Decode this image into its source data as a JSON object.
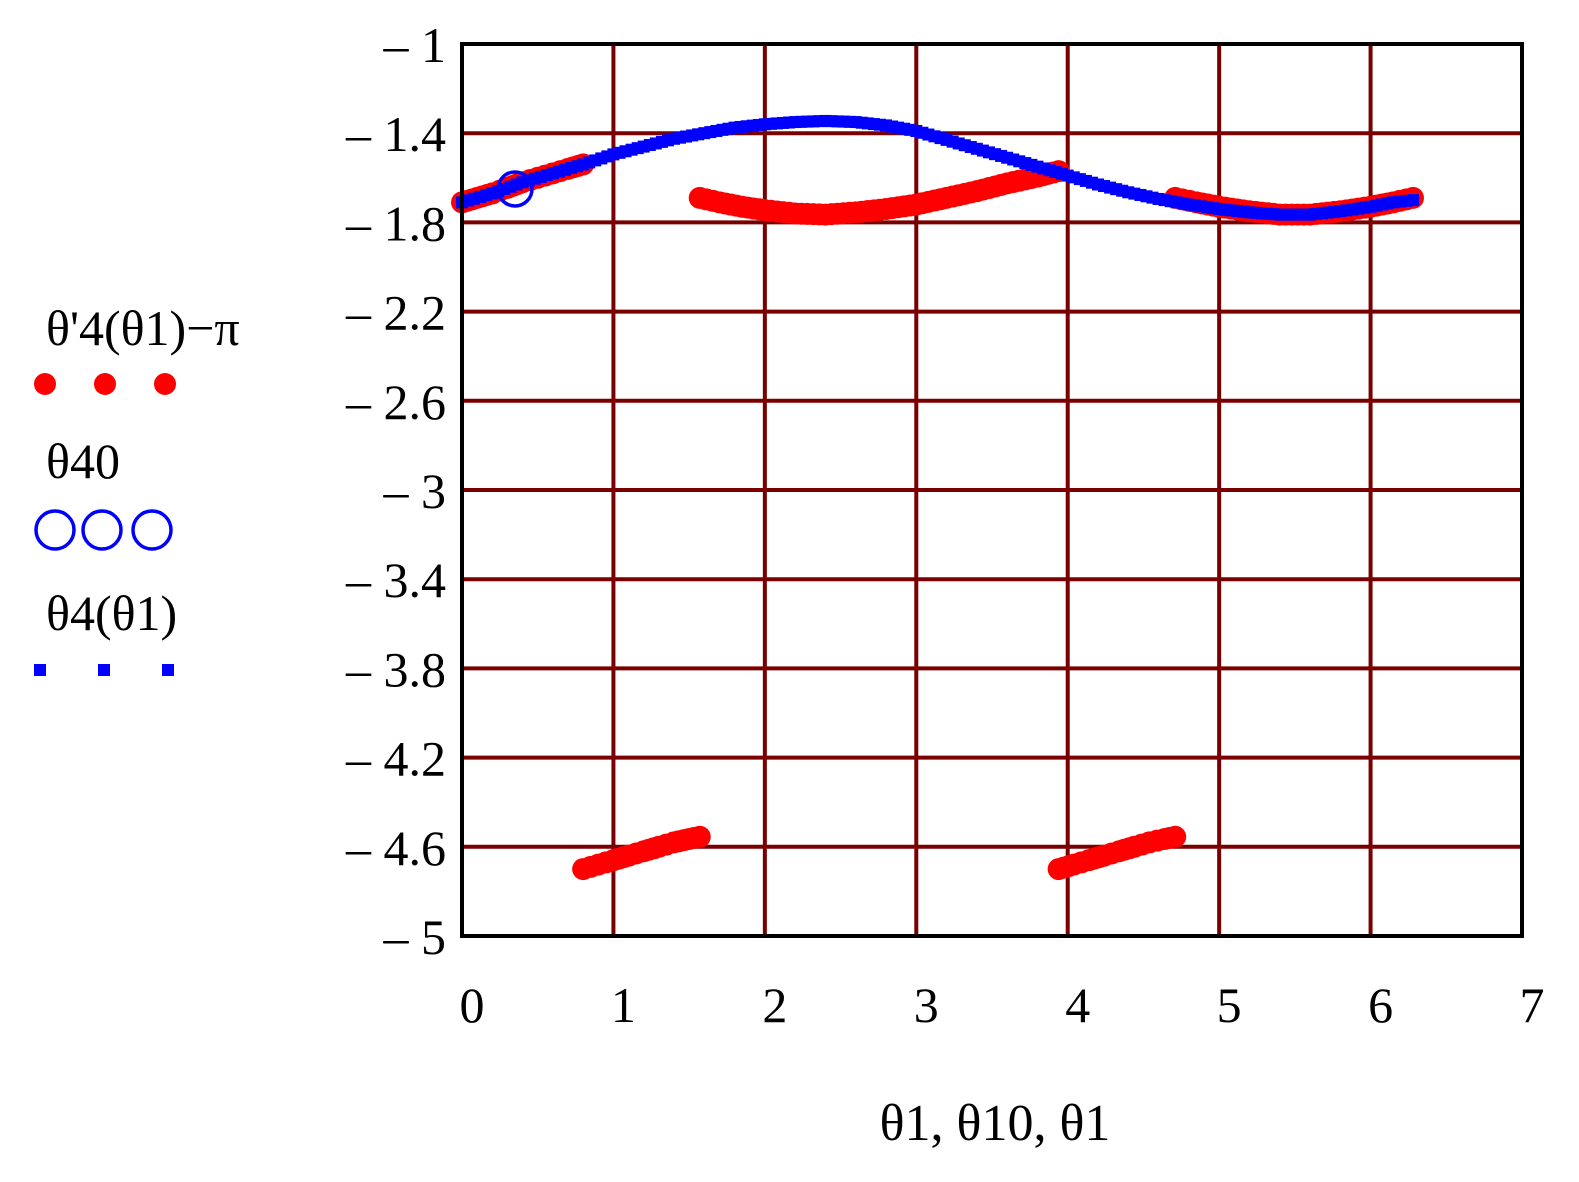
{
  "colors": {
    "grid": "#7a0000",
    "frame": "#000000",
    "series_red": "#ff0000",
    "series_blue": "#0000ff"
  },
  "legend": {
    "placement": "left",
    "entries": [
      {
        "label": "θ'4(θ1)−π",
        "marker": "filled-circle",
        "color": "#ff0000"
      },
      {
        "label": "θ40",
        "marker": "open-circle",
        "color": "#0000ff"
      },
      {
        "label": "θ4(θ1)",
        "marker": "small-square",
        "color": "#0000ff"
      }
    ]
  },
  "chart_data": {
    "type": "scatter",
    "title": "",
    "xlabel": "θ1, θ10, θ1",
    "ylabel": "",
    "xlim": [
      0,
      7
    ],
    "ylim": [
      -5,
      -1
    ],
    "grid": true,
    "legend_placement": "left",
    "x_ticks": [
      0,
      1,
      2,
      3,
      4,
      5,
      6,
      7
    ],
    "x_tick_labels": [
      "0",
      "1",
      "2",
      "3",
      "4",
      "5",
      "6",
      "7"
    ],
    "y_ticks": [
      -1,
      -1.4,
      -1.8,
      -2.2,
      -2.6,
      -3,
      -3.4,
      -3.8,
      -4.2,
      -4.6,
      -5
    ],
    "y_tick_labels": [
      "– 1",
      "– 1.4",
      "– 1.8",
      "– 2.2",
      "– 2.6",
      "– 3",
      "– 3.4",
      "– 3.8",
      "– 4.2",
      "– 4.6",
      "– 5"
    ],
    "series": [
      {
        "name": "θ'4(θ1)−π",
        "marker": "filled-circle",
        "color": "#ff0000",
        "points": [
          [
            0.0,
            -1.71
          ],
          [
            0.1,
            -1.69
          ],
          [
            0.2,
            -1.67
          ],
          [
            0.3,
            -1.645
          ],
          [
            0.4,
            -1.62
          ],
          [
            0.5,
            -1.6
          ],
          [
            0.6,
            -1.58
          ],
          [
            0.7,
            -1.56
          ],
          [
            0.8,
            -1.54
          ],
          [
            0.8,
            -4.7
          ],
          [
            0.9,
            -4.68
          ],
          [
            1.0,
            -4.66
          ],
          [
            1.1,
            -4.64
          ],
          [
            1.2,
            -4.62
          ],
          [
            1.3,
            -4.6
          ],
          [
            1.4,
            -4.58
          ],
          [
            1.5,
            -4.565
          ],
          [
            1.57,
            -4.555
          ],
          [
            1.57,
            -1.69
          ],
          [
            1.7,
            -1.71
          ],
          [
            1.85,
            -1.73
          ],
          [
            2.0,
            -1.745
          ],
          [
            2.2,
            -1.76
          ],
          [
            2.4,
            -1.765
          ],
          [
            2.6,
            -1.755
          ],
          [
            2.8,
            -1.74
          ],
          [
            3.0,
            -1.72
          ],
          [
            3.2,
            -1.69
          ],
          [
            3.4,
            -1.66
          ],
          [
            3.6,
            -1.625
          ],
          [
            3.8,
            -1.595
          ],
          [
            3.94,
            -1.57
          ],
          [
            3.94,
            -4.7
          ],
          [
            4.04,
            -4.68
          ],
          [
            4.14,
            -4.66
          ],
          [
            4.24,
            -4.64
          ],
          [
            4.34,
            -4.62
          ],
          [
            4.44,
            -4.6
          ],
          [
            4.54,
            -4.58
          ],
          [
            4.64,
            -4.565
          ],
          [
            4.71,
            -4.555
          ],
          [
            4.71,
            -1.69
          ],
          [
            4.85,
            -1.71
          ],
          [
            5.0,
            -1.73
          ],
          [
            5.2,
            -1.75
          ],
          [
            5.4,
            -1.765
          ],
          [
            5.6,
            -1.765
          ],
          [
            5.8,
            -1.75
          ],
          [
            6.0,
            -1.73
          ],
          [
            6.15,
            -1.71
          ],
          [
            6.28,
            -1.69
          ]
        ]
      },
      {
        "name": "θ40",
        "marker": "open-circle",
        "color": "#0000ff",
        "points": [
          [
            0.35,
            -1.65
          ]
        ]
      },
      {
        "name": "θ4(θ1)",
        "marker": "small-square",
        "color": "#0000ff",
        "points": [
          [
            0.0,
            -1.71
          ],
          [
            0.2,
            -1.67
          ],
          [
            0.4,
            -1.62
          ],
          [
            0.6,
            -1.58
          ],
          [
            0.8,
            -1.54
          ],
          [
            1.0,
            -1.495
          ],
          [
            1.2,
            -1.46
          ],
          [
            1.4,
            -1.425
          ],
          [
            1.6,
            -1.4
          ],
          [
            1.8,
            -1.375
          ],
          [
            2.0,
            -1.36
          ],
          [
            2.2,
            -1.35
          ],
          [
            2.4,
            -1.345
          ],
          [
            2.6,
            -1.35
          ],
          [
            2.8,
            -1.365
          ],
          [
            3.0,
            -1.39
          ],
          [
            3.2,
            -1.43
          ],
          [
            3.4,
            -1.47
          ],
          [
            3.6,
            -1.51
          ],
          [
            3.8,
            -1.55
          ],
          [
            4.0,
            -1.59
          ],
          [
            4.2,
            -1.63
          ],
          [
            4.4,
            -1.665
          ],
          [
            4.6,
            -1.695
          ],
          [
            4.8,
            -1.72
          ],
          [
            5.0,
            -1.74
          ],
          [
            5.2,
            -1.755
          ],
          [
            5.4,
            -1.765
          ],
          [
            5.6,
            -1.765
          ],
          [
            5.8,
            -1.75
          ],
          [
            6.0,
            -1.73
          ],
          [
            6.15,
            -1.71
          ],
          [
            6.28,
            -1.7
          ]
        ]
      }
    ]
  }
}
